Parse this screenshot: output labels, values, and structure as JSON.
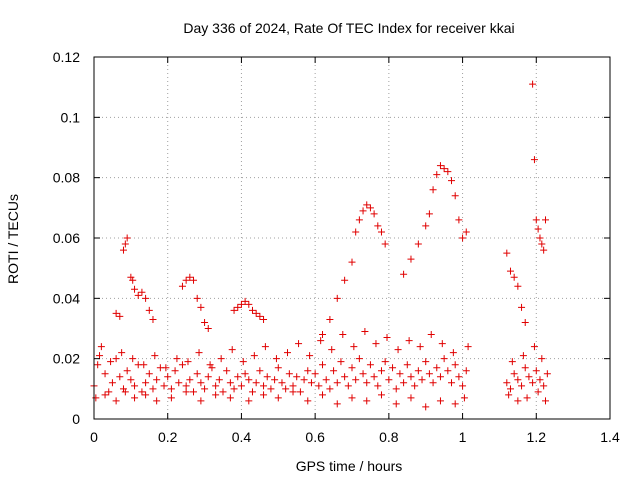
{
  "chart_data": {
    "type": "scatter",
    "title": "Day 336 of 2024, Rate Of TEC Index for receiver kkai",
    "xlabel": "GPS time / hours",
    "ylabel": "ROTI / TECUs",
    "xlim": [
      0,
      1.4
    ],
    "ylim": [
      0,
      0.12
    ],
    "xticks": [
      "0",
      "0.2",
      "0.4",
      "0.6",
      "0.8",
      "1",
      "1.2",
      "1.4"
    ],
    "yticks": [
      "0",
      "0.02",
      "0.04",
      "0.06",
      "0.08",
      "0.1",
      "0.12"
    ],
    "grid": true,
    "marker": "+",
    "series": [
      {
        "name": "ROTI",
        "color": "#e00000",
        "x": [
          0.0,
          0.01,
          0.02,
          0.03,
          0.04,
          0.05,
          0.06,
          0.07,
          0.08,
          0.09,
          0.1,
          0.11,
          0.12,
          0.13,
          0.14,
          0.15,
          0.16,
          0.17,
          0.18,
          0.19,
          0.2,
          0.21,
          0.22,
          0.23,
          0.24,
          0.25,
          0.26,
          0.27,
          0.28,
          0.29,
          0.3,
          0.31,
          0.32,
          0.33,
          0.34,
          0.35,
          0.36,
          0.37,
          0.38,
          0.39,
          0.4,
          0.41,
          0.42,
          0.43,
          0.44,
          0.45,
          0.46,
          0.47,
          0.48,
          0.49,
          0.5,
          0.51,
          0.52,
          0.53,
          0.54,
          0.55,
          0.56,
          0.57,
          0.58,
          0.59,
          0.6,
          0.61,
          0.62,
          0.63,
          0.64,
          0.65,
          0.66,
          0.67,
          0.68,
          0.69,
          0.7,
          0.71,
          0.72,
          0.73,
          0.74,
          0.75,
          0.76,
          0.77,
          0.78,
          0.79,
          0.8,
          0.81,
          0.82,
          0.83,
          0.84,
          0.85,
          0.86,
          0.87,
          0.88,
          0.89,
          0.9,
          0.91,
          0.92,
          0.93,
          0.94,
          0.95,
          0.96,
          0.97,
          0.98,
          0.99,
          1.0,
          1.01,
          1.12,
          1.13,
          1.14,
          1.15,
          1.16,
          1.17,
          1.18,
          1.19,
          1.2,
          1.21,
          1.22,
          1.23,
          0.005,
          0.03,
          0.06,
          0.085,
          0.11,
          0.14,
          0.17,
          0.21,
          0.25,
          0.29,
          0.33,
          0.37,
          0.42,
          0.46,
          0.5,
          0.54,
          0.58,
          0.62,
          0.66,
          0.7,
          0.74,
          0.78,
          0.82,
          0.86,
          0.9,
          0.94,
          0.98,
          1.005,
          1.125,
          1.15,
          1.175,
          1.205,
          1.225,
          0.015,
          0.045,
          0.075,
          0.105,
          0.135,
          0.165,
          0.195,
          0.225,
          0.255,
          0.285,
          0.315,
          0.345,
          0.375,
          0.405,
          0.435,
          0.465,
          0.495,
          0.525,
          0.555,
          0.585,
          0.615,
          0.645,
          0.675,
          0.705,
          0.735,
          0.765,
          0.795,
          0.825,
          0.855,
          0.885,
          0.915,
          0.945,
          0.975,
          1.015,
          1.135,
          1.165,
          1.195,
          1.215,
          0.06,
          0.07,
          0.08,
          0.085,
          0.09,
          0.1,
          0.105,
          0.11,
          0.12,
          0.13,
          0.14,
          0.15,
          0.16,
          0.24,
          0.25,
          0.26,
          0.27,
          0.28,
          0.29,
          0.3,
          0.31,
          0.38,
          0.39,
          0.4,
          0.41,
          0.42,
          0.43,
          0.44,
          0.45,
          0.46,
          0.62,
          0.64,
          0.66,
          0.68,
          0.7,
          0.71,
          0.72,
          0.73,
          0.74,
          0.75,
          0.76,
          0.77,
          0.78,
          0.79,
          0.84,
          0.86,
          0.88,
          0.9,
          0.91,
          0.92,
          0.93,
          0.94,
          0.95,
          0.96,
          0.97,
          0.98,
          0.99,
          1.0,
          1.01,
          1.19,
          1.195,
          1.2,
          1.205,
          1.21,
          1.215,
          1.22,
          1.225,
          1.12,
          1.13,
          1.14,
          1.15,
          1.16,
          1.17
        ],
        "y": [
          0.011,
          0.018,
          0.024,
          0.015,
          0.009,
          0.012,
          0.02,
          0.014,
          0.01,
          0.016,
          0.013,
          0.011,
          0.018,
          0.009,
          0.012,
          0.015,
          0.01,
          0.013,
          0.017,
          0.011,
          0.014,
          0.01,
          0.016,
          0.012,
          0.018,
          0.011,
          0.013,
          0.009,
          0.015,
          0.012,
          0.01,
          0.014,
          0.017,
          0.011,
          0.013,
          0.009,
          0.016,
          0.012,
          0.01,
          0.014,
          0.011,
          0.015,
          0.013,
          0.009,
          0.012,
          0.016,
          0.011,
          0.014,
          0.01,
          0.013,
          0.017,
          0.012,
          0.01,
          0.015,
          0.011,
          0.014,
          0.009,
          0.013,
          0.016,
          0.012,
          0.015,
          0.011,
          0.018,
          0.013,
          0.01,
          0.016,
          0.012,
          0.019,
          0.014,
          0.011,
          0.017,
          0.013,
          0.02,
          0.015,
          0.012,
          0.018,
          0.014,
          0.011,
          0.016,
          0.019,
          0.013,
          0.017,
          0.01,
          0.015,
          0.012,
          0.018,
          0.014,
          0.011,
          0.016,
          0.013,
          0.019,
          0.015,
          0.012,
          0.017,
          0.014,
          0.02,
          0.016,
          0.012,
          0.018,
          0.014,
          0.011,
          0.016,
          0.012,
          0.01,
          0.015,
          0.013,
          0.011,
          0.017,
          0.014,
          0.012,
          0.016,
          0.013,
          0.011,
          0.015,
          0.007,
          0.008,
          0.006,
          0.009,
          0.007,
          0.008,
          0.006,
          0.007,
          0.009,
          0.006,
          0.008,
          0.007,
          0.006,
          0.008,
          0.007,
          0.009,
          0.006,
          0.008,
          0.005,
          0.007,
          0.006,
          0.008,
          0.005,
          0.007,
          0.004,
          0.006,
          0.005,
          0.007,
          0.008,
          0.006,
          0.007,
          0.009,
          0.006,
          0.021,
          0.019,
          0.022,
          0.02,
          0.018,
          0.021,
          0.017,
          0.02,
          0.019,
          0.022,
          0.018,
          0.02,
          0.023,
          0.019,
          0.021,
          0.024,
          0.02,
          0.022,
          0.025,
          0.021,
          0.026,
          0.023,
          0.028,
          0.024,
          0.029,
          0.025,
          0.027,
          0.023,
          0.026,
          0.024,
          0.028,
          0.025,
          0.022,
          0.024,
          0.019,
          0.021,
          0.024,
          0.02,
          0.035,
          0.034,
          0.056,
          0.058,
          0.06,
          0.047,
          0.046,
          0.043,
          0.041,
          0.042,
          0.04,
          0.036,
          0.033,
          0.044,
          0.046,
          0.047,
          0.046,
          0.04,
          0.037,
          0.032,
          0.03,
          0.036,
          0.037,
          0.038,
          0.039,
          0.038,
          0.036,
          0.035,
          0.034,
          0.033,
          0.028,
          0.033,
          0.04,
          0.046,
          0.052,
          0.062,
          0.066,
          0.069,
          0.071,
          0.07,
          0.068,
          0.064,
          0.062,
          0.058,
          0.048,
          0.053,
          0.058,
          0.064,
          0.068,
          0.076,
          0.081,
          0.084,
          0.083,
          0.082,
          0.079,
          0.074,
          0.066,
          0.06,
          0.062,
          0.111,
          0.086,
          0.066,
          0.063,
          0.06,
          0.058,
          0.056,
          0.066,
          0.055,
          0.049,
          0.047,
          0.044,
          0.037,
          0.032
        ]
      }
    ]
  }
}
